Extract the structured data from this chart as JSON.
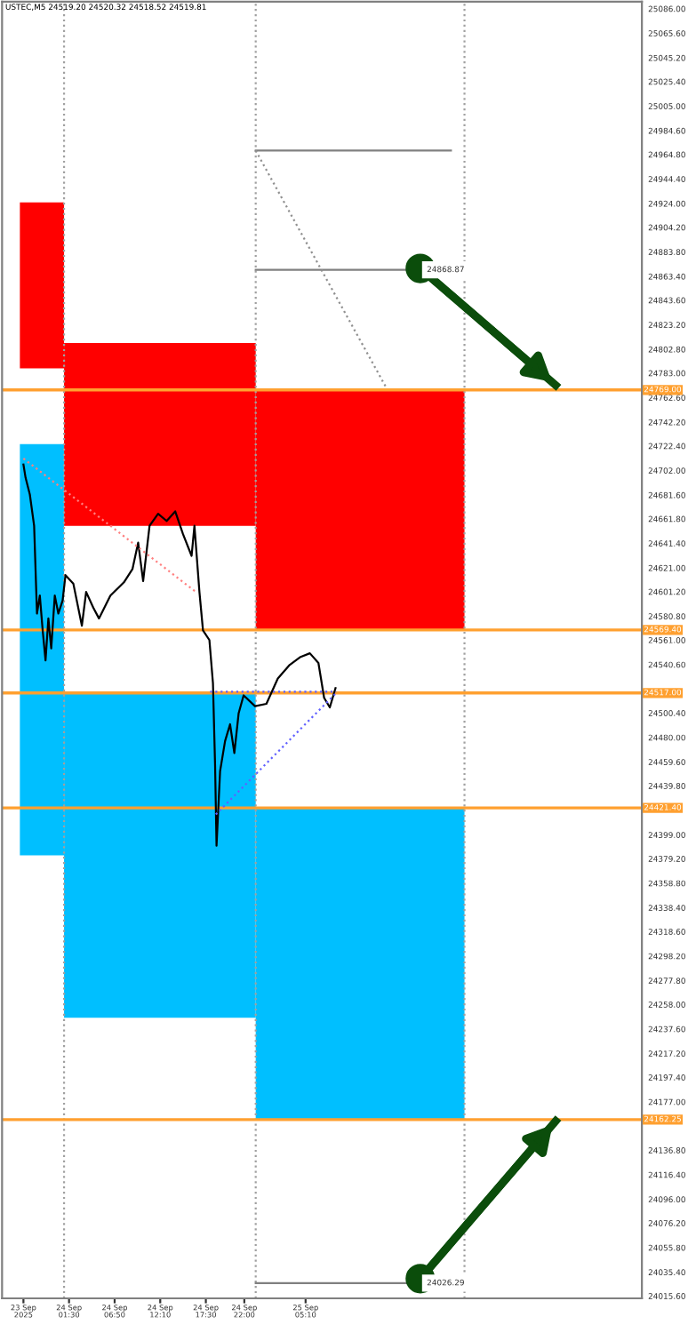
{
  "chart_data": {
    "type": "line",
    "title": "USTEC,M5 24519.20 24520.32 24518.52 24519.81",
    "xlim": [
      "2025-09-23T17:40",
      "2025-09-26T20:30"
    ],
    "ylim": [
      24013.6,
      25091.8
    ],
    "xticks": [
      {
        "value": "2025-09-23T20:10",
        "label": "23 Sep 2025"
      },
      {
        "value": "2025-09-24T01:30",
        "label": "24 Sep 01:30"
      },
      {
        "value": "2025-09-24T06:50",
        "label": "24 Sep 06:50"
      },
      {
        "value": "2025-09-24T12:10",
        "label": "24 Sep 12:10"
      },
      {
        "value": "2025-09-24T17:30",
        "label": "24 Sep 17:30"
      },
      {
        "value": "2025-09-24T22:00",
        "label": "24 Sep 22:00"
      },
      {
        "value": "2025-09-25T05:10",
        "label": "25 Sep 05:10"
      }
    ],
    "yticks": [
      {
        "value": 25086.0,
        "label": "25086.00"
      },
      {
        "value": 25065.6,
        "label": "25065.60"
      },
      {
        "value": 25045.2,
        "label": "25045.20"
      },
      {
        "value": 25025.4,
        "label": "25025.40"
      },
      {
        "value": 25005.0,
        "label": "25005.00"
      },
      {
        "value": 24984.6,
        "label": "24984.60"
      },
      {
        "value": 24964.8,
        "label": "24964.80"
      },
      {
        "value": 24944.4,
        "label": "24944.40"
      },
      {
        "value": 24924.0,
        "label": "24924.00"
      },
      {
        "value": 24904.2,
        "label": "24904.20"
      },
      {
        "value": 24883.8,
        "label": "24883.80"
      },
      {
        "value": 24863.4,
        "label": "24863.40"
      },
      {
        "value": 24843.6,
        "label": "24843.60"
      },
      {
        "value": 24823.2,
        "label": "24823.20"
      },
      {
        "value": 24802.8,
        "label": "24802.80"
      },
      {
        "value": 24783.0,
        "label": "24783.00"
      },
      {
        "value": 24762.6,
        "label": "24762.60"
      },
      {
        "value": 24742.2,
        "label": "24742.20"
      },
      {
        "value": 24722.4,
        "label": "24722.40"
      },
      {
        "value": 24702.0,
        "label": "24702.00"
      },
      {
        "value": 24681.6,
        "label": "24681.60"
      },
      {
        "value": 24661.8,
        "label": "24661.80"
      },
      {
        "value": 24641.4,
        "label": "24641.40"
      },
      {
        "value": 24621.0,
        "label": "24621.00"
      },
      {
        "value": 24601.2,
        "label": "24601.20"
      },
      {
        "value": 24580.8,
        "label": "24580.80"
      },
      {
        "value": 24561.0,
        "label": "24561.00"
      },
      {
        "value": 24540.6,
        "label": "24540.60"
      },
      {
        "value": 24500.4,
        "label": "24500.40"
      },
      {
        "value": 24480.0,
        "label": "24480.00"
      },
      {
        "value": 24459.6,
        "label": "24459.60"
      },
      {
        "value": 24439.8,
        "label": "24439.80"
      },
      {
        "value": 24399.0,
        "label": "24399.00"
      },
      {
        "value": 24379.2,
        "label": "24379.20"
      },
      {
        "value": 24358.8,
        "label": "24358.80"
      },
      {
        "value": 24338.4,
        "label": "24338.40"
      },
      {
        "value": 24318.6,
        "label": "24318.60"
      },
      {
        "value": 24298.2,
        "label": "24298.20"
      },
      {
        "value": 24277.8,
        "label": "24277.80"
      },
      {
        "value": 24258.0,
        "label": "24258.00"
      },
      {
        "value": 24237.6,
        "label": "24237.60"
      },
      {
        "value": 24217.2,
        "label": "24217.20"
      },
      {
        "value": 24197.4,
        "label": "24197.40"
      },
      {
        "value": 24177.0,
        "label": "24177.00"
      },
      {
        "value": 24136.8,
        "label": "24136.80"
      },
      {
        "value": 24116.4,
        "label": "24116.40"
      },
      {
        "value": 24096.0,
        "label": "24096.00"
      },
      {
        "value": 24076.2,
        "label": "24076.20"
      },
      {
        "value": 24055.8,
        "label": "24055.80"
      },
      {
        "value": 24035.4,
        "label": "24035.40"
      },
      {
        "value": 24015.6,
        "label": "24015.60"
      }
    ],
    "grid": false,
    "legend": false,
    "ref_lines": [
      {
        "axis": "x",
        "value": "2025-09-24T00:55",
        "color": "#a0a0a0",
        "line_style": "dotted"
      },
      {
        "axis": "x",
        "value": "2025-09-24T23:20",
        "color": "#a0a0a0",
        "line_style": "dotted"
      },
      {
        "axis": "x",
        "value": "2025-09-25T23:45",
        "color": "#a0a0a0",
        "line_style": "dotted"
      },
      {
        "axis": "y",
        "value": 24769.0,
        "label": "24769.00",
        "color": "#ffa030"
      },
      {
        "axis": "y",
        "value": 24569.4,
        "label": "24569.40",
        "color": "#ffa030"
      },
      {
        "axis": "y",
        "value": 24517.0,
        "label": "24517.00",
        "color": "#ffa030"
      },
      {
        "axis": "y",
        "value": 24421.4,
        "label": "24421.40",
        "color": "#ffa030"
      },
      {
        "axis": "y",
        "value": 24162.25,
        "label": "24162.25",
        "color": "#ffa030"
      }
    ],
    "series": [
      {
        "type": "bar",
        "color": "#ff0000",
        "x": [
          "2025-09-23T22:20",
          "2025-09-24T12:05",
          "2025-09-25T11:30"
        ],
        "base": [
          24787,
          24656,
          24569.4
        ],
        "values": [
          138,
          152,
          199.6
        ]
      },
      {
        "type": "bar",
        "color": "#00bfff",
        "x": [
          "2025-09-23T22:20",
          "2025-09-24T12:05",
          "2025-09-25T11:30"
        ],
        "base": [
          24382,
          24247,
          24162.25
        ],
        "values": [
          342,
          270,
          259.15
        ]
      },
      {
        "color": "#000000",
        "x": [
          "2025-09-23T20:10",
          "2025-09-23T20:25",
          "2025-09-23T20:55",
          "2025-09-23T21:25",
          "2025-09-23T21:45",
          "2025-09-23T22:05",
          "2025-09-23T22:25",
          "2025-09-23T22:45",
          "2025-09-23T23:05",
          "2025-09-23T23:25",
          "2025-09-23T23:50",
          "2025-09-24T00:15",
          "2025-09-24T00:45",
          "2025-09-24T01:05",
          "2025-09-24T02:00",
          "2025-09-24T03:00",
          "2025-09-24T03:30",
          "2025-09-24T04:20",
          "2025-09-24T05:00",
          "2025-09-24T06:20",
          "2025-09-24T07:55",
          "2025-09-24T08:55",
          "2025-09-24T09:35",
          "2025-09-24T10:10",
          "2025-09-24T10:55",
          "2025-09-24T11:55",
          "2025-09-24T12:55",
          "2025-09-24T13:55",
          "2025-09-24T14:50",
          "2025-09-24T15:50",
          "2025-09-24T16:10",
          "2025-09-24T16:45",
          "2025-09-24T17:10",
          "2025-09-24T17:55",
          "2025-09-24T18:20",
          "2025-09-24T18:35",
          "2025-09-24T18:45",
          "2025-09-24T19:10",
          "2025-09-24T19:45",
          "2025-09-24T20:20",
          "2025-09-24T20:50",
          "2025-09-24T21:20",
          "2025-09-24T21:55",
          "2025-09-24T23:15",
          "2025-09-25T00:35",
          "2025-09-25T01:55",
          "2025-09-25T03:15",
          "2025-09-25T04:35",
          "2025-09-25T05:40",
          "2025-09-25T06:40",
          "2025-09-25T07:20",
          "2025-09-25T08:00",
          "2025-09-25T08:40"
        ],
        "values": [
          24707,
          24696,
          24682,
          24656,
          24583,
          24598,
          24569,
          24544,
          24579,
          24554,
          24598,
          24583,
          24594,
          24615,
          24608,
          24573,
          24601,
          24588,
          24579,
          24598,
          24609,
          24620,
          24642,
          24610,
          24656,
          24666,
          24660,
          24668,
          24649,
          24631,
          24656,
          24601,
          24569,
          24561,
          24525,
          24456,
          24390,
          24452,
          24477,
          24491,
          24467,
          24500,
          24515,
          24506,
          24508,
          24529,
          24540,
          24547,
          24550,
          24542,
          24513,
          24505,
          24521
        ]
      },
      {
        "type": "line",
        "color": "#808080",
        "x": [
          "2025-09-24T23:20",
          "2025-09-25T22:10"
        ],
        "values": [
          24968,
          24968
        ]
      },
      {
        "type": "line",
        "color": "#808080",
        "x": [
          "2025-09-24T23:20",
          "2025-09-25T23:45"
        ],
        "values": [
          24868.87,
          24868.87
        ]
      },
      {
        "type": "line",
        "color": "#808080",
        "x": [
          "2025-09-24T23:20",
          "2025-09-25T23:45"
        ],
        "values": [
          24026.29,
          24026.29
        ]
      },
      {
        "type": "line",
        "color": "#909090",
        "line_style": "dotted",
        "x": [
          "2025-09-24T23:20",
          "2025-09-25T14:40"
        ],
        "values": [
          24968,
          24770
        ]
      },
      {
        "type": "line",
        "color": "#ff8080",
        "line_style": "dotted",
        "x": [
          "2025-09-23T20:10",
          "2025-09-24T16:20"
        ],
        "values": [
          24712,
          24601
        ]
      },
      {
        "type": "line",
        "color": "#6060ff",
        "line_style": "dotted",
        "x": [
          "2025-09-24T18:00",
          "2025-09-25T08:45"
        ],
        "values": [
          24518,
          24518
        ]
      },
      {
        "type": "line",
        "color": "#6060ff",
        "line_style": "dotted",
        "x": [
          "2025-09-24T18:40",
          "2025-09-25T08:45"
        ],
        "values": [
          24416,
          24517
        ]
      },
      {
        "type": "line",
        "color": "#0b4d0b",
        "marker": "circle",
        "x": [
          "2025-09-25T18:35",
          "2025-09-26T10:25"
        ],
        "values": [
          24870,
          24773
        ]
      },
      {
        "type": "line",
        "color": "#0b4d0b",
        "marker": "circle",
        "x": [
          "2025-09-25T18:35",
          "2025-09-26T10:25"
        ],
        "values": [
          24030,
          24161
        ]
      }
    ],
    "annotations": [
      {
        "text": "24868.87",
        "x": "2025-09-25T23:45",
        "y": 24868.87
      },
      {
        "text": "24026.29",
        "x": "2025-09-25T23:45",
        "y": 24026.29
      }
    ]
  }
}
